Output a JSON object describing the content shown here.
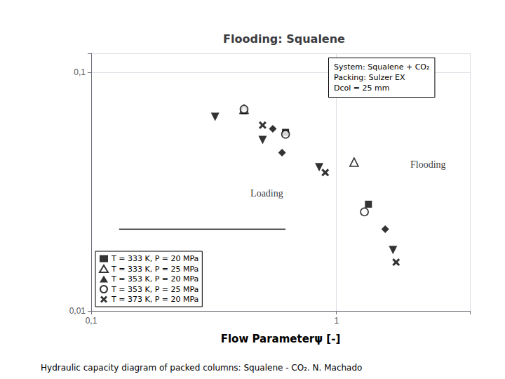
{
  "chart_data": {
    "type": "scatter",
    "title": "Flooding: Squalene",
    "subtitle": "Hydraulic capacity diagram of packed columns: Squalene - CO₂. N. Machado",
    "xlabel": "Flow Parameterψ [-]",
    "log": true,
    "grid": true,
    "legend": "lower left",
    "xlim": [
      0.1,
      3.5
    ],
    "ylim": [
      0.01,
      0.12
    ],
    "xticks": [
      {
        "value": 0.1,
        "label": "0,1"
      },
      1
    ],
    "yticks": [
      {
        "value": 0.01,
        "label": "0,01"
      },
      {
        "value": 0.1,
        "label": "0,1"
      }
    ],
    "series": [
      {
        "name": "T = 333 K, P = 20 MPa",
        "type": "scatter",
        "marker": "square",
        "color": "#000000",
        "x": [
          0.42,
          0.62,
          1.35
        ],
        "values": [
          0.069,
          0.056,
          0.028
        ]
      },
      {
        "name": "T = 333 K, P = 25 MPa",
        "type": "scatter",
        "marker": "triangle-up-open",
        "color": "#000000",
        "x": [
          0.42,
          1.18
        ],
        "values": [
          0.07,
          0.042
        ]
      },
      {
        "name": "T = 353 K, P = 20 MPa",
        "type": "scatter",
        "marker": "triangle-down",
        "color": "#000000",
        "x": [
          0.32,
          0.5,
          0.85,
          1.7
        ],
        "values": [
          0.065,
          0.052,
          0.04,
          0.018
        ]
      },
      {
        "name": "T = 353 K, P = 25 MPa",
        "type": "scatter",
        "marker": "circle-open",
        "color": "#000000",
        "x": [
          0.42,
          0.62,
          1.3
        ],
        "values": [
          0.07,
          0.055,
          0.026
        ]
      },
      {
        "name": "T = 373 K, P = 20 MPa",
        "type": "scatter",
        "marker": "x",
        "color": "#000000",
        "x": [
          0.5,
          0.9,
          1.75
        ],
        "values": [
          0.06,
          0.038,
          0.016
        ]
      },
      {
        "type": "scatter",
        "marker": "diamond",
        "color": "#000000",
        "x": [
          0.55,
          0.6,
          1.58
        ],
        "values": [
          0.058,
          0.046,
          0.022
        ]
      },
      {
        "type": "line",
        "line_style": "solid",
        "color": "#000000",
        "x": [
          0.13,
          0.62
        ],
        "values": [
          0.022,
          0.022
        ]
      }
    ],
    "annotations": [
      {
        "text": "Flooding",
        "x": 2.0,
        "y": 0.041
      },
      {
        "text": "Loading",
        "x": 0.52,
        "y": 0.031
      }
    ],
    "text_box": [
      "System: Squalene + CO₂",
      "Packing: Sulzer EX",
      "Dcol = 25 mm"
    ]
  }
}
